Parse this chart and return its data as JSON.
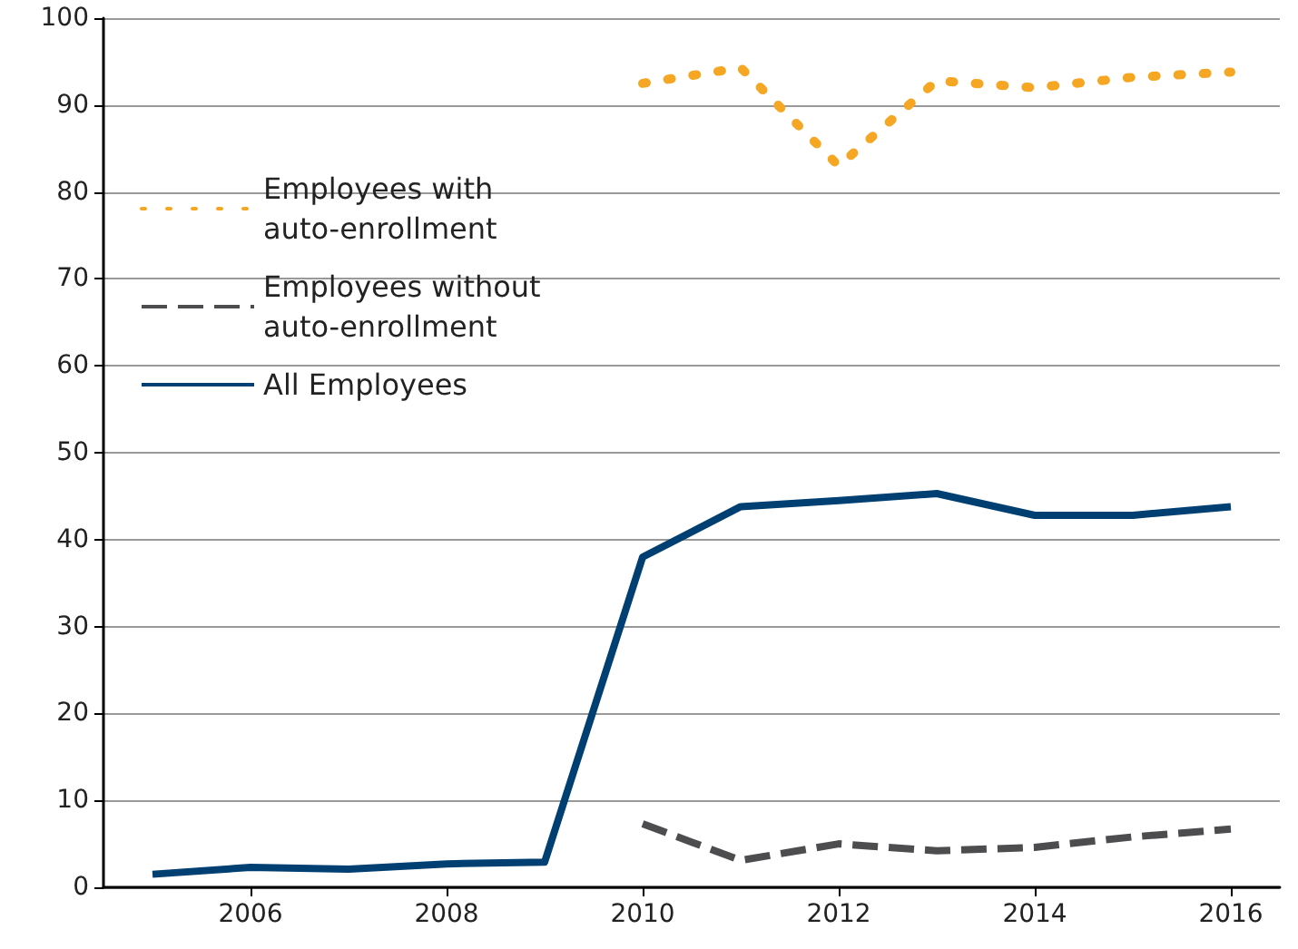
{
  "chart_data": {
    "type": "line",
    "x": [
      2005,
      2006,
      2007,
      2008,
      2009,
      2010,
      2011,
      2012,
      2013,
      2014,
      2015,
      2016
    ],
    "xlim": [
      2004.5,
      2016.5
    ],
    "xticks": [
      2006,
      2008,
      2010,
      2012,
      2014,
      2016
    ],
    "ylim": [
      0,
      100
    ],
    "yticks": [
      0,
      10,
      20,
      30,
      40,
      50,
      60,
      70,
      80,
      90,
      100
    ],
    "grid": "y",
    "legend": "top left",
    "marker": "none",
    "series": [
      {
        "name": "Employees with\nauto-enrollment",
        "color": "#f5a623",
        "line_style": "dotted",
        "values": [
          null,
          null,
          null,
          null,
          null,
          92.5,
          94.3,
          83,
          92.8,
          92,
          93.2,
          93.8
        ]
      },
      {
        "name": "Employees without\nauto-enrollment",
        "color": "#4d4d4f",
        "line_style": "dashed",
        "values": [
          null,
          null,
          null,
          null,
          null,
          7.3,
          3.1,
          5,
          4.2,
          4.6,
          5.8,
          6.7
        ]
      },
      {
        "name": "All Employees",
        "color": "#003f72",
        "line_style": "solid",
        "values": [
          1.5,
          2.3,
          2.1,
          2.7,
          2.9,
          38,
          43.8,
          44.5,
          45.3,
          42.8,
          42.8,
          43.8
        ]
      }
    ]
  }
}
